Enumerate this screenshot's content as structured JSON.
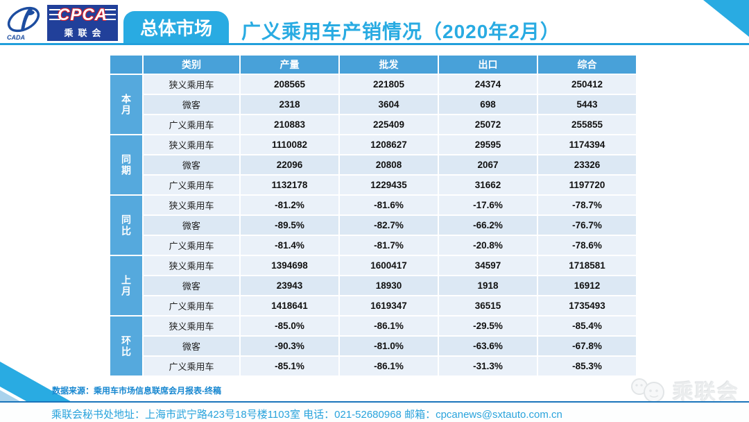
{
  "header": {
    "logo": {
      "cpca": "CPCA",
      "cada": "CADA",
      "org_spaced": "乘联会"
    },
    "badge": "总体市场",
    "title": "广义乘用车产销情况（2020年2月）"
  },
  "table": {
    "columns": [
      "类别",
      "产量",
      "批发",
      "出口",
      "综合"
    ],
    "groups": [
      {
        "label": "本月",
        "rows": [
          {
            "category": "狭义乘用车",
            "values": [
              "208565",
              "221805",
              "24374",
              "250412"
            ]
          },
          {
            "category": "微客",
            "values": [
              "2318",
              "3604",
              "698",
              "5443"
            ]
          },
          {
            "category": "广义乘用车",
            "values": [
              "210883",
              "225409",
              "25072",
              "255855"
            ]
          }
        ]
      },
      {
        "label": "同期",
        "rows": [
          {
            "category": "狭义乘用车",
            "values": [
              "1110082",
              "1208627",
              "29595",
              "1174394"
            ]
          },
          {
            "category": "微客",
            "values": [
              "22096",
              "20808",
              "2067",
              "23326"
            ]
          },
          {
            "category": "广义乘用车",
            "values": [
              "1132178",
              "1229435",
              "31662",
              "1197720"
            ]
          }
        ]
      },
      {
        "label": "同比",
        "rows": [
          {
            "category": "狭义乘用车",
            "values": [
              "-81.2%",
              "-81.6%",
              "-17.6%",
              "-78.7%"
            ]
          },
          {
            "category": "微客",
            "values": [
              "-89.5%",
              "-82.7%",
              "-66.2%",
              "-76.7%"
            ]
          },
          {
            "category": "广义乘用车",
            "values": [
              "-81.4%",
              "-81.7%",
              "-20.8%",
              "-78.6%"
            ]
          }
        ]
      },
      {
        "label": "上月",
        "rows": [
          {
            "category": "狭义乘用车",
            "values": [
              "1394698",
              "1600417",
              "34597",
              "1718581"
            ]
          },
          {
            "category": "微客",
            "values": [
              "23943",
              "18930",
              "1918",
              "16912"
            ]
          },
          {
            "category": "广义乘用车",
            "values": [
              "1418641",
              "1619347",
              "36515",
              "1735493"
            ]
          }
        ]
      },
      {
        "label": "环比",
        "rows": [
          {
            "category": "狭义乘用车",
            "values": [
              "-85.0%",
              "-86.1%",
              "-29.5%",
              "-85.4%"
            ]
          },
          {
            "category": "微客",
            "values": [
              "-90.3%",
              "-81.0%",
              "-63.6%",
              "-67.8%"
            ]
          },
          {
            "category": "广义乘用车",
            "values": [
              "-85.1%",
              "-86.1%",
              "-31.3%",
              "-85.3%"
            ]
          }
        ]
      }
    ]
  },
  "footer": {
    "source": "数据来源：乘用车市场信息联席会月报表-终稿",
    "contact": "乘联会秘书处地址：上海市武宁路423号18号楼1103室  电话：021-52680968   邮箱：cpcanews@sxtauto.com.cn",
    "watermark": "乘联会"
  },
  "colors": {
    "accent_cyan": "#29abe2",
    "table_header_blue": "#48a1d9",
    "group_label_blue": "#55a9dd",
    "row_light": "#eaf1f9",
    "row_mid": "#dce8f4",
    "logo_navy": "#21409a",
    "footer_line_blue": "#1a74ba",
    "source_text_blue": "#1787d0",
    "contact_text_blue": "#29a3dc"
  }
}
